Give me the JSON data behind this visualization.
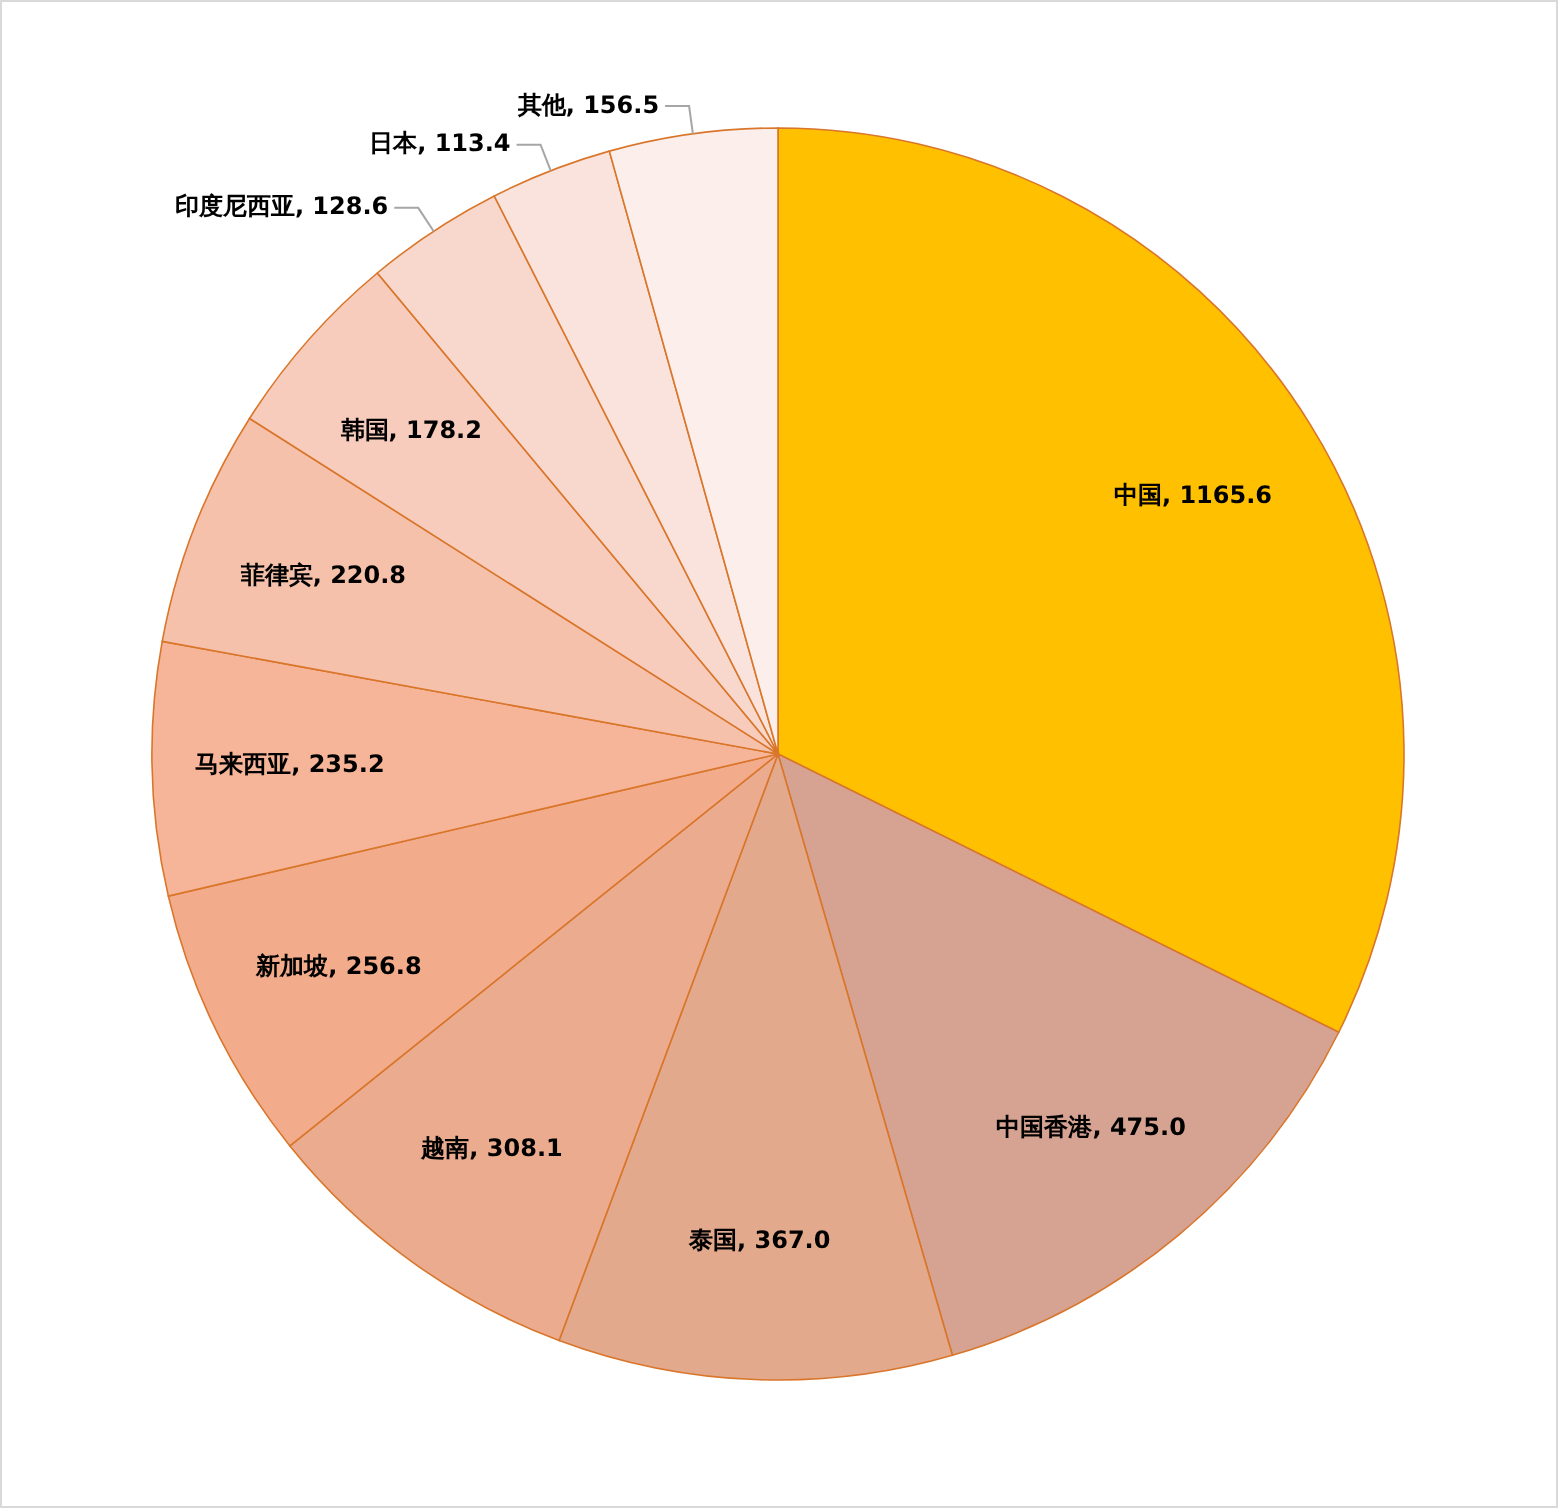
{
  "chart_data": {
    "type": "pie",
    "categories": [
      "中国",
      "中国香港",
      "泰国",
      "越南",
      "新加坡",
      "马来西亚",
      "菲律宾",
      "韩国",
      "印度尼西亚",
      "日本",
      "其他"
    ],
    "values": [
      1165.6,
      475.0,
      367.0,
      308.1,
      256.8,
      235.2,
      220.8,
      178.2,
      128.6,
      113.4,
      156.5
    ],
    "value_labels": [
      "1165.6",
      "475.0",
      "367.0",
      "308.1",
      "256.8",
      "235.2",
      "220.8",
      "178.2",
      "128.6",
      "113.4",
      "156.5"
    ],
    "colors": [
      "#ffc000",
      "#d6a392",
      "#e3a98c",
      "#eaab8e",
      "#f2ab8b",
      "#f6b598",
      "#f6c1ab",
      "#f7ccbc",
      "#f8d8cd",
      "#fae3dc",
      "#fcefeb"
    ]
  }
}
